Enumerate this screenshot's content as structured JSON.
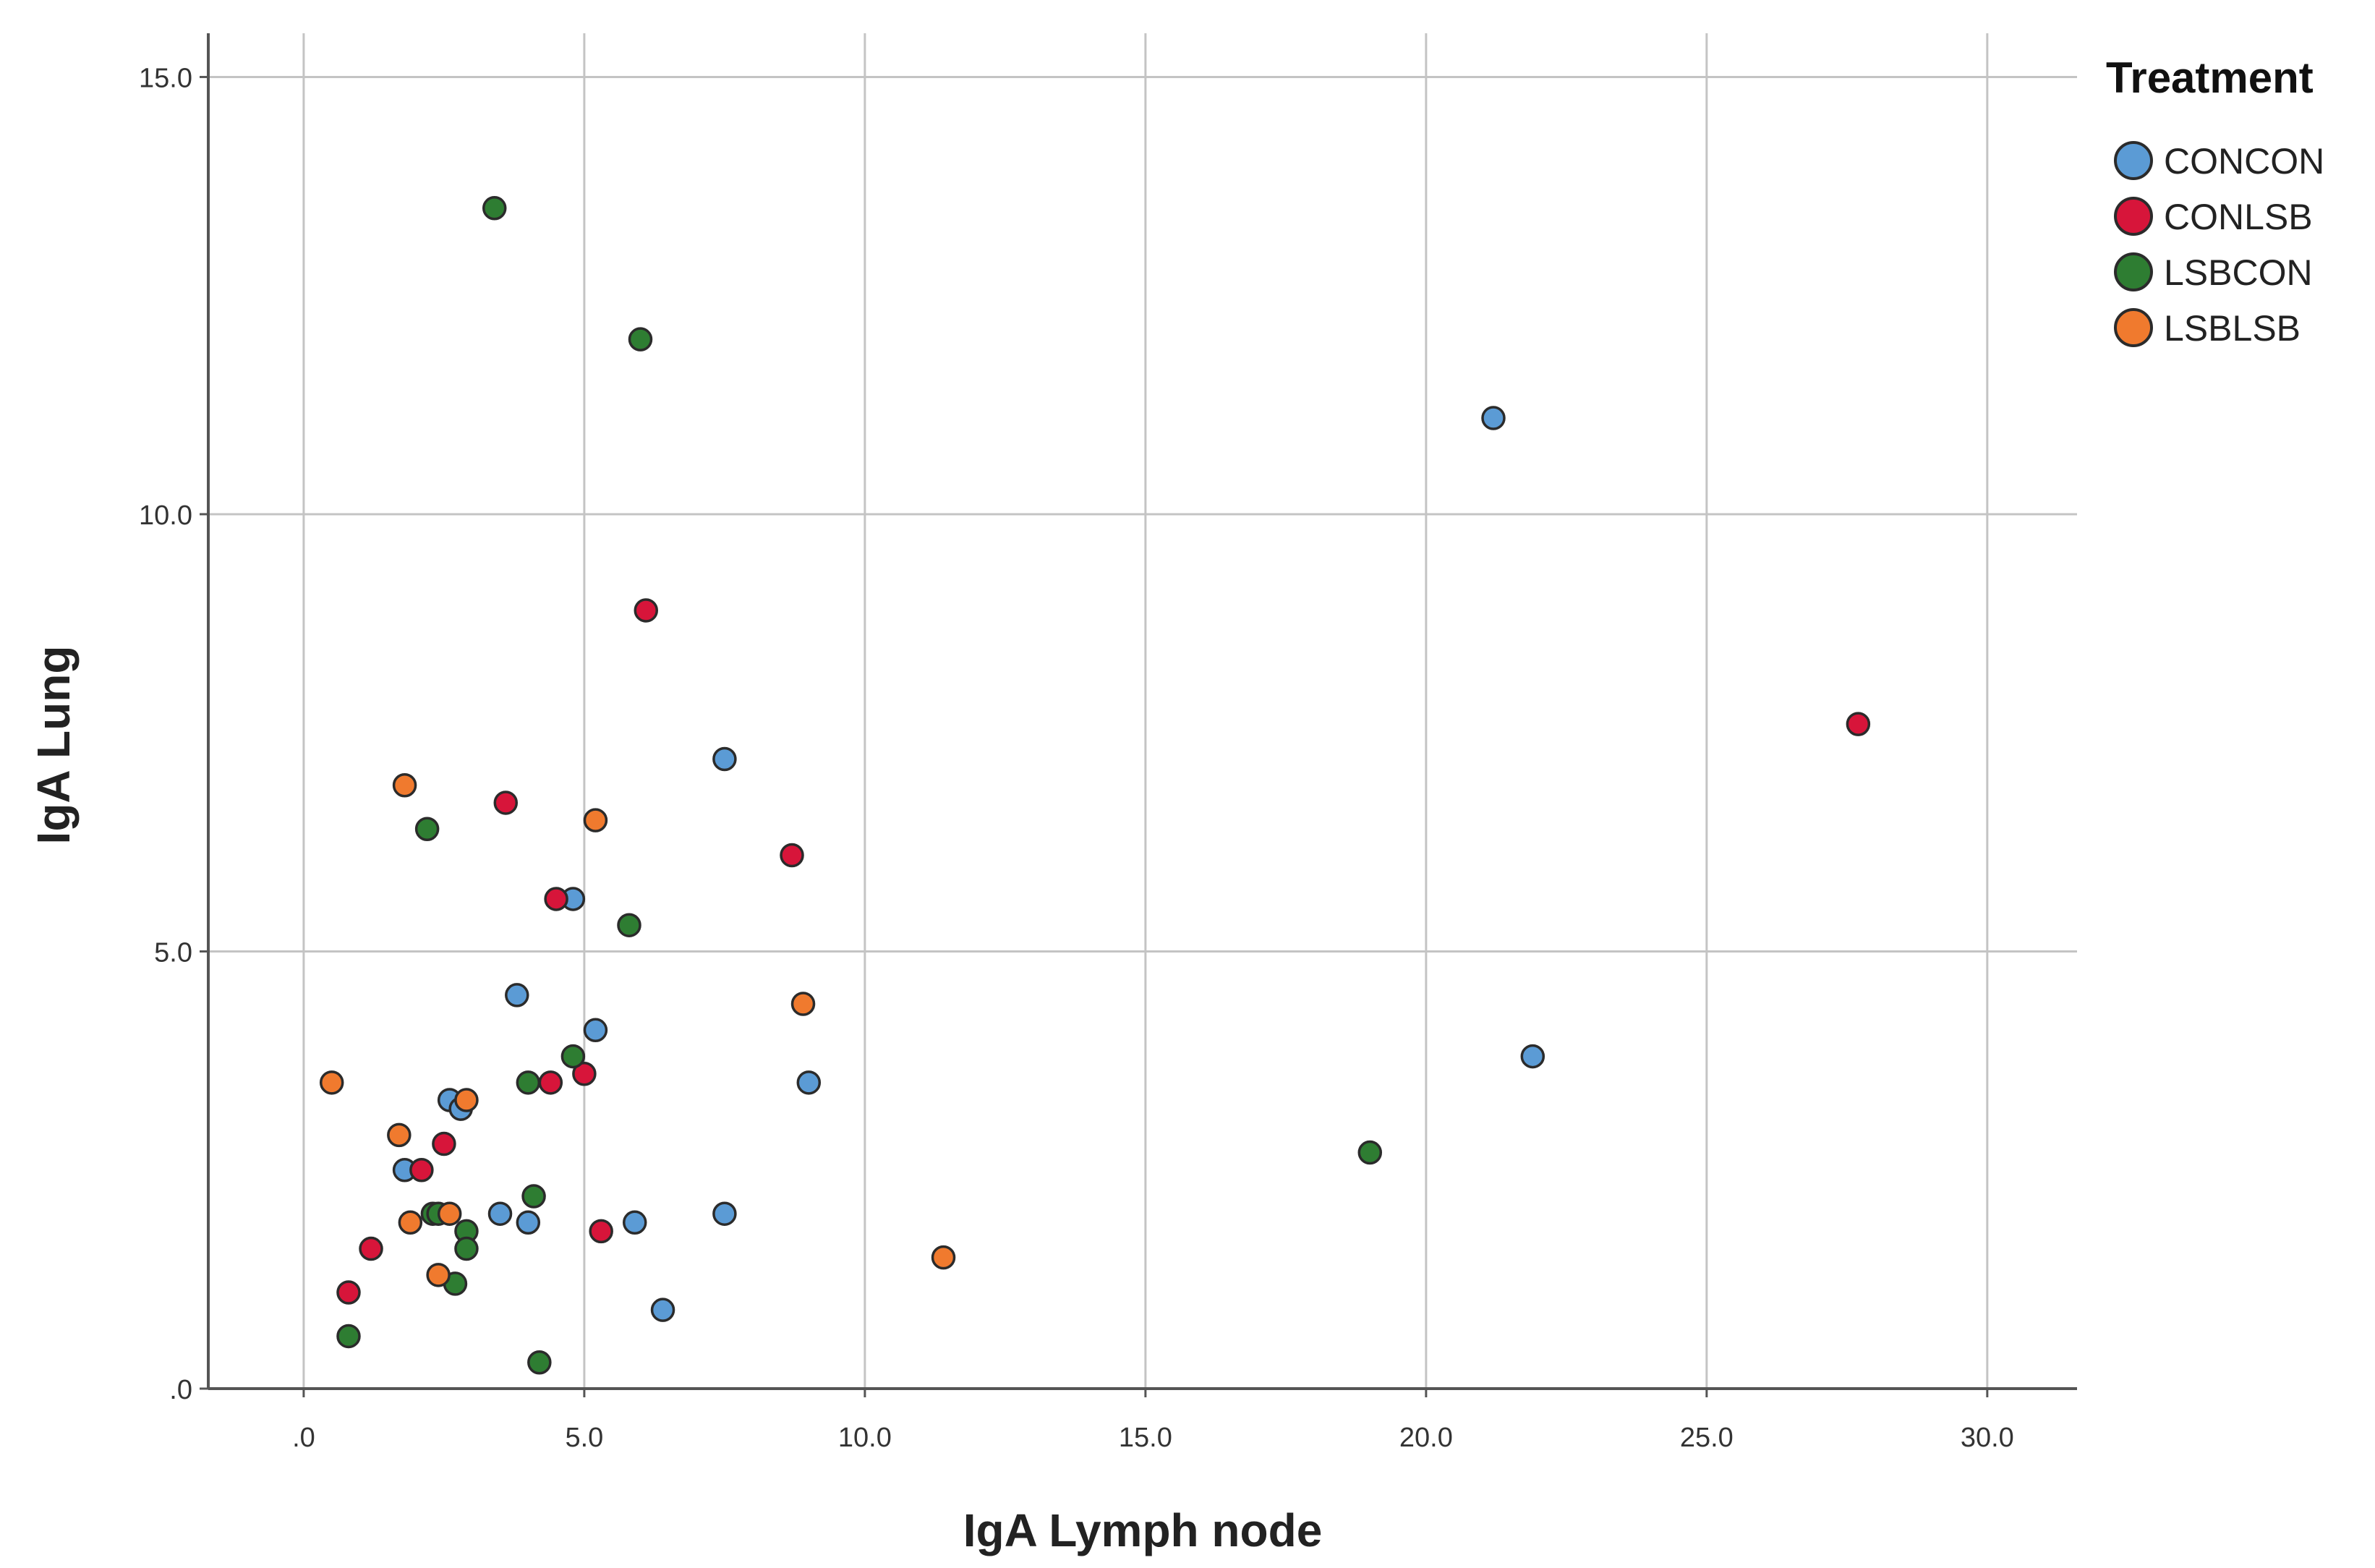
{
  "chart_data": {
    "type": "scatter",
    "xlabel": "IgA Lymph node",
    "ylabel": "IgA Lung",
    "xlim": [
      -1.7,
      31.6
    ],
    "ylim": [
      0,
      15.5
    ],
    "x_ticks": [
      0,
      5,
      10,
      15,
      20,
      25,
      30
    ],
    "x_tick_labels": [
      ".0",
      "5.0",
      "10.0",
      "15.0",
      "20.0",
      "25.0",
      "30.0"
    ],
    "y_ticks": [
      0,
      5,
      10,
      15
    ],
    "y_tick_labels": [
      ".0",
      "5.0",
      "10.0",
      "15.0"
    ],
    "grid": true,
    "legend": {
      "title": "Treatment",
      "placement": "right-top"
    },
    "series": [
      {
        "name": "CONCON",
        "color": "#5b9bd5",
        "points": [
          [
            21.2,
            11.1
          ],
          [
            21.9,
            3.8
          ],
          [
            7.5,
            7.2
          ],
          [
            4.8,
            5.6
          ],
          [
            3.8,
            4.5
          ],
          [
            5.2,
            4.1
          ],
          [
            9.0,
            3.5
          ],
          [
            2.6,
            3.3
          ],
          [
            2.8,
            3.2
          ],
          [
            1.8,
            2.5
          ],
          [
            3.5,
            2.0
          ],
          [
            4.0,
            1.9
          ],
          [
            5.9,
            1.9
          ],
          [
            7.5,
            2.0
          ],
          [
            6.4,
            0.9
          ]
        ]
      },
      {
        "name": "CONLSB",
        "color": "#d7153a",
        "points": [
          [
            27.7,
            7.6
          ],
          [
            6.1,
            8.9
          ],
          [
            3.6,
            6.7
          ],
          [
            8.7,
            6.1
          ],
          [
            4.5,
            5.6
          ],
          [
            5.0,
            3.6
          ],
          [
            4.4,
            3.5
          ],
          [
            2.5,
            2.8
          ],
          [
            2.1,
            2.5
          ],
          [
            5.3,
            1.8
          ],
          [
            1.2,
            1.6
          ],
          [
            0.8,
            1.1
          ]
        ]
      },
      {
        "name": "LSBCON",
        "color": "#2e7d32",
        "points": [
          [
            3.4,
            13.5
          ],
          [
            6.0,
            12.0
          ],
          [
            2.2,
            6.4
          ],
          [
            5.8,
            5.3
          ],
          [
            4.8,
            3.8
          ],
          [
            4.0,
            3.5
          ],
          [
            19.0,
            2.7
          ],
          [
            4.1,
            2.2
          ],
          [
            2.3,
            2.0
          ],
          [
            2.4,
            2.0
          ],
          [
            2.9,
            1.8
          ],
          [
            2.9,
            1.6
          ],
          [
            2.7,
            1.2
          ],
          [
            0.8,
            0.6
          ],
          [
            4.2,
            0.3
          ]
        ]
      },
      {
        "name": "LSBLSB",
        "color": "#f07a2e",
        "points": [
          [
            1.8,
            6.9
          ],
          [
            5.2,
            6.5
          ],
          [
            8.9,
            4.4
          ],
          [
            0.5,
            3.5
          ],
          [
            2.9,
            3.3
          ],
          [
            1.7,
            2.9
          ],
          [
            2.6,
            2.0
          ],
          [
            1.9,
            1.9
          ],
          [
            2.4,
            1.3
          ],
          [
            11.4,
            1.5
          ]
        ]
      }
    ]
  }
}
